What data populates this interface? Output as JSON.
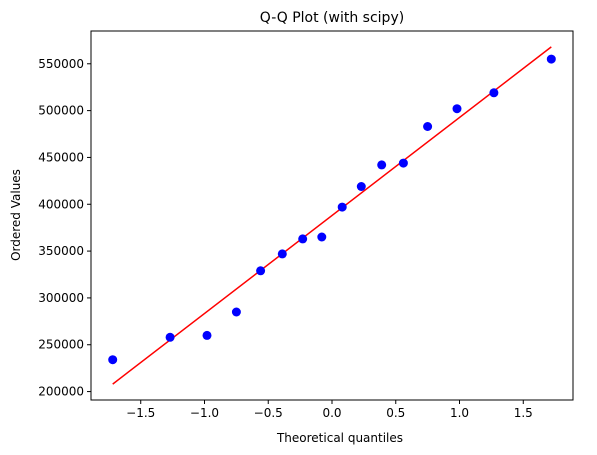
{
  "chart_data": {
    "type": "scatter",
    "title": "Q-Q Plot (with scipy)",
    "xlabel": "Theoretical quantiles",
    "ylabel": "Ordered Values",
    "xlim": [
      -1.89,
      1.89
    ],
    "ylim": [
      191000,
      585000
    ],
    "x_ticks": [
      -1.5,
      -1.0,
      -0.5,
      0.0,
      0.5,
      1.0,
      1.5
    ],
    "x_tick_labels": [
      "−1.5",
      "−1.0",
      "−0.5",
      "0.0",
      "0.5",
      "1.0",
      "1.5"
    ],
    "y_ticks": [
      200000,
      250000,
      300000,
      350000,
      400000,
      450000,
      500000,
      550000
    ],
    "y_tick_labels": [
      "200000",
      "250000",
      "300000",
      "350000",
      "400000",
      "450000",
      "500000",
      "550000"
    ],
    "grid": false,
    "series": [
      {
        "kind": "points",
        "color": "#0000ff",
        "x": [
          -1.72,
          -1.27,
          -0.98,
          -0.75,
          -0.56,
          -0.39,
          -0.23,
          -0.08,
          0.08,
          0.23,
          0.39,
          0.56,
          0.75,
          0.98,
          1.27,
          1.72
        ],
        "y": [
          234000,
          258000,
          260000,
          285000,
          329000,
          347000,
          363000,
          365000,
          397000,
          419000,
          442000,
          444000,
          483000,
          502000,
          519000,
          555000
        ]
      },
      {
        "kind": "fit-line",
        "color": "#ff0000",
        "x": [
          -1.72,
          1.72
        ],
        "y": [
          208000,
          568000
        ]
      }
    ]
  }
}
